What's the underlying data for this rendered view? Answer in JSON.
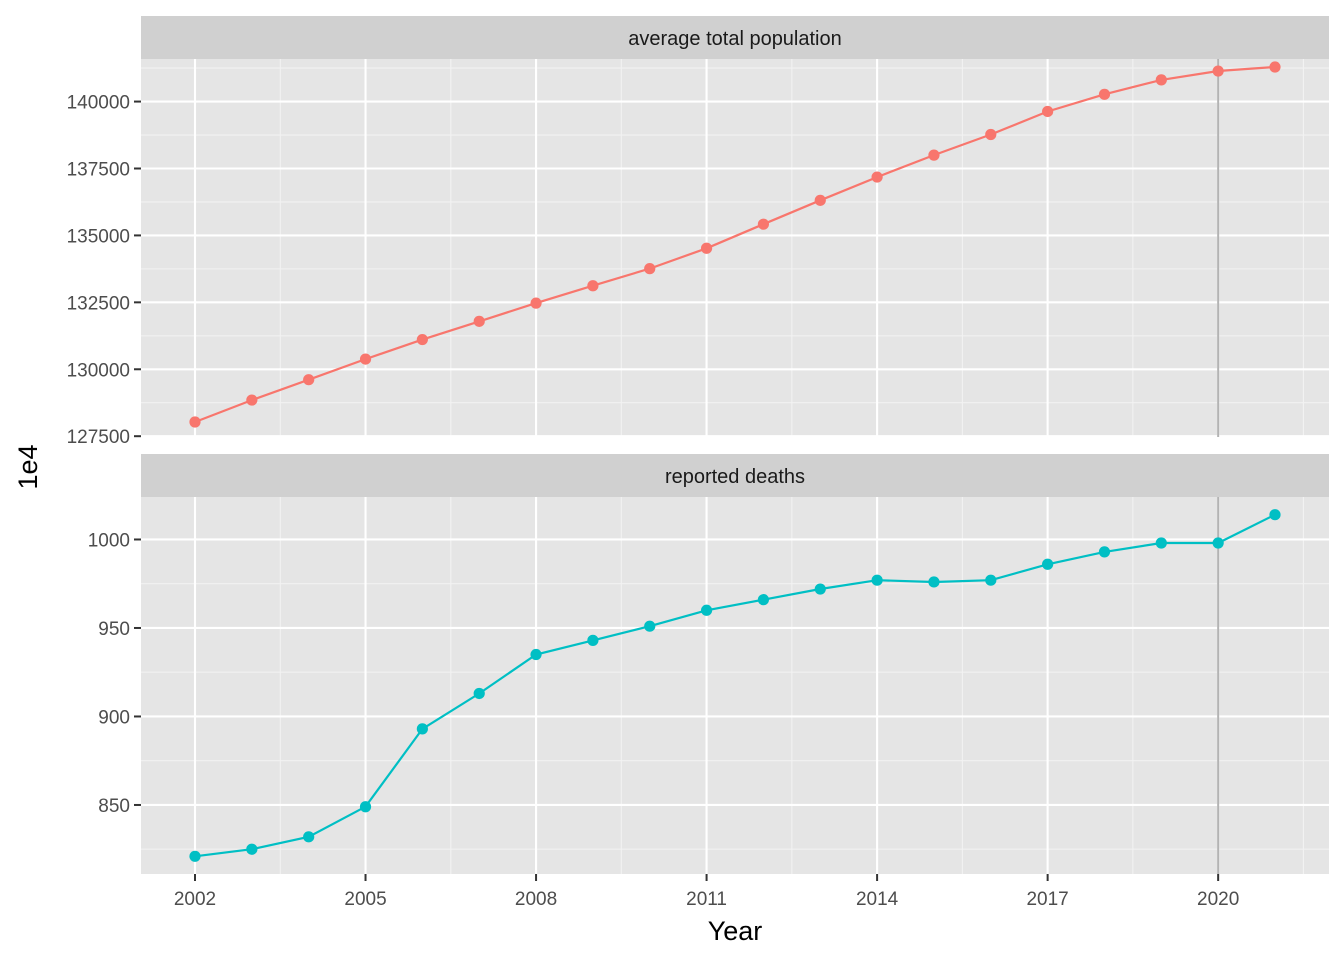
{
  "chart_data": {
    "type": "line",
    "facet_layout": "vertical",
    "xlabel": "Year",
    "ylabel": "1e4",
    "xlim": [
      2001.05,
      2021.95
    ],
    "x_ticks": [
      2002,
      2005,
      2008,
      2011,
      2014,
      2017,
      2020
    ],
    "reference_line": {
      "x": 2020,
      "color": "#b3b3b3"
    },
    "panel_background": "#e5e5e5",
    "strip_background": "#d0d0d0",
    "grid": true,
    "legend": "none",
    "x": [
      2002,
      2003,
      2004,
      2005,
      2006,
      2007,
      2008,
      2009,
      2010,
      2011,
      2012,
      2013,
      2014,
      2015,
      2016,
      2017,
      2018,
      2019,
      2020,
      2021
    ],
    "panels": [
      {
        "strip": "average total population",
        "color": "#F8766D",
        "ylim": [
          127470,
          141590
        ],
        "y_ticks": [
          127500,
          130000,
          132500,
          135000,
          137500,
          140000
        ],
        "values": [
          128030,
          128850,
          129610,
          130380,
          131110,
          131790,
          132470,
          133120,
          133760,
          134520,
          135420,
          136310,
          137180,
          138000,
          138770,
          139630,
          140270,
          140810,
          141140,
          141290
        ]
      },
      {
        "strip": "reported deaths",
        "color": "#00BFC4",
        "ylim": [
          811,
          1024
        ],
        "y_ticks": [
          850,
          900,
          950,
          1000
        ],
        "values": [
          821,
          825,
          832,
          849,
          893,
          913,
          935,
          943,
          951,
          960,
          966,
          972,
          977,
          976,
          977,
          986,
          993,
          998,
          998,
          1014
        ]
      }
    ]
  }
}
